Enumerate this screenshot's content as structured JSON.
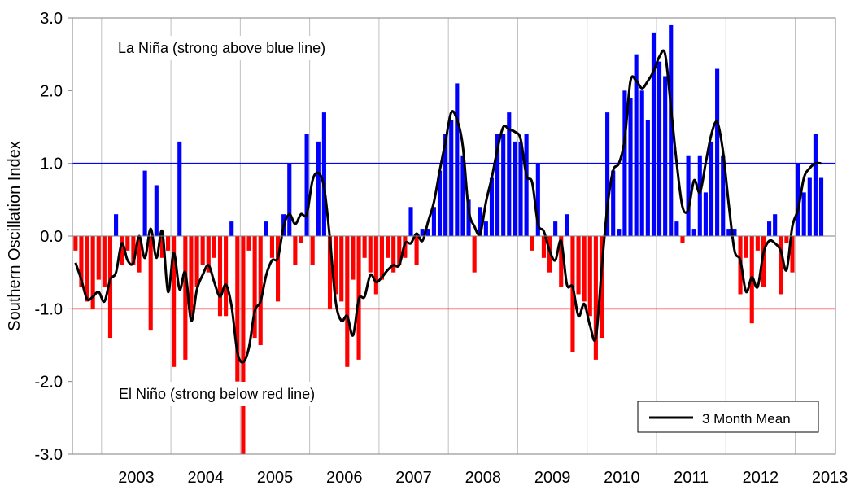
{
  "chart_data": {
    "type": "bar",
    "ylabel": "Southern Oscillation Index",
    "ylim": [
      -3.0,
      3.0
    ],
    "yticks": [
      "3.0",
      "2.0",
      "1.0",
      "0.0",
      "-1.0",
      "-2.0",
      "-3.0"
    ],
    "ytick_values": [
      3,
      2,
      1,
      0,
      -1,
      -2,
      -3
    ],
    "xlim": [
      2002.58,
      2013.58
    ],
    "year_labels": [
      "2003",
      "2004",
      "2005",
      "2006",
      "2007",
      "2008",
      "2009",
      "2010",
      "2011",
      "2012",
      "2013"
    ],
    "start": {
      "year": 2002,
      "month": 8
    },
    "values": [
      -0.2,
      -0.7,
      -0.9,
      -1.0,
      -0.6,
      -0.7,
      -1.4,
      0.3,
      -0.4,
      -0.2,
      -0.4,
      -0.5,
      0.9,
      -1.3,
      0.7,
      -0.3,
      -0.2,
      -1.8,
      1.3,
      -1.7,
      -1.1,
      -0.7,
      -0.4,
      -0.5,
      -0.3,
      -1.1,
      -1.1,
      0.2,
      -2.0,
      -3.0,
      -0.2,
      -1.4,
      -1.5,
      0.2,
      -0.3,
      -0.9,
      0.3,
      1.0,
      -0.4,
      -0.1,
      1.4,
      -0.4,
      1.3,
      1.7,
      -1.0,
      -0.8,
      -0.9,
      -1.8,
      -0.6,
      -1.7,
      -0.3,
      -0.5,
      -0.8,
      -0.6,
      -0.3,
      -0.5,
      -0.4,
      -0.3,
      0.4,
      -0.4,
      0.1,
      0.1,
      0.4,
      0.9,
      1.4,
      1.6,
      2.1,
      1.1,
      0.5,
      -0.5,
      0.4,
      0.2,
      0.8,
      1.4,
      1.4,
      1.7,
      1.3,
      1.3,
      1.4,
      -0.2,
      1.0,
      -0.3,
      -0.5,
      0.2,
      -0.7,
      0.3,
      -1.6,
      -0.8,
      -0.9,
      -1.1,
      -1.7,
      -1.4,
      1.7,
      0.9,
      0.1,
      2.0,
      1.9,
      2.5,
      2.0,
      1.6,
      2.8,
      2.4,
      2.2,
      2.9,
      0.2,
      -0.1,
      1.1,
      0.1,
      1.1,
      0.6,
      1.3,
      2.3,
      1.1,
      0.1,
      0.1,
      -0.8,
      -0.3,
      -1.2,
      -0.2,
      -0.7,
      0.2,
      0.3,
      -0.8,
      -0.1,
      -0.5,
      1.0,
      0.6,
      0.8,
      1.4,
      0.8
    ],
    "series": [
      {
        "name": "3 Month Mean",
        "color": "#000000"
      }
    ],
    "positive_color": "#0000ff",
    "negative_color": "#ff0000",
    "reference_lines": [
      {
        "value": 1.0,
        "color": "#0000ff"
      },
      {
        "value": -1.0,
        "color": "#ff0000"
      }
    ],
    "annotations": {
      "la_nina": "La Niña (strong above blue line)",
      "el_nino": "El Niño (strong below red line)"
    },
    "legend": {
      "label": "3 Month Mean",
      "position": "bottom-right"
    },
    "grid": "vertical"
  }
}
